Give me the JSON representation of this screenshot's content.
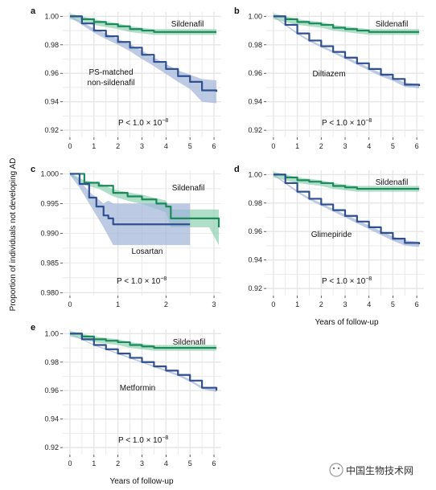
{
  "figure": {
    "ylabel": "Proportion of individuals not developing AD",
    "xlabel": "Years of follow-up",
    "watermark": "中国生物技术网"
  },
  "colors": {
    "sildenafil": "#1a8a5a",
    "sildenafil_band": "#8fd0b0",
    "comparator": "#2f4f8f",
    "comparator_band": "#9fb4d8",
    "grid": "#e6e6e6"
  },
  "chart_data": [
    {
      "type": "line",
      "panel": "a",
      "xlim": [
        -0.3,
        6.3
      ],
      "ylim": [
        0.915,
        1.003
      ],
      "xticks": [
        0,
        1,
        2,
        3,
        4,
        5,
        6
      ],
      "yticks": [
        0.92,
        0.94,
        0.96,
        0.98,
        1.0
      ],
      "ytick_labels": [
        "0.92",
        "0.94",
        "0.96",
        "0.98",
        "1.00"
      ],
      "grid": true,
      "annotation": "P < 1.0 × 10",
      "annotation_exp": "−8",
      "series": [
        {
          "name": "Sildenafil",
          "x": [
            0,
            0.5,
            1,
            1.5,
            2,
            2.5,
            3,
            3.5,
            4,
            4.5,
            5,
            5.5,
            6.1
          ],
          "y": [
            1.0,
            0.998,
            0.996,
            0.9945,
            0.993,
            0.991,
            0.99,
            0.989,
            0.989,
            0.989,
            0.989,
            0.989,
            0.989
          ],
          "band": [
            0.002,
            0.002,
            0.002,
            0.002,
            0.002,
            0.002,
            0.002,
            0.002,
            0.002,
            0.002,
            0.002,
            0.002,
            0.002
          ]
        },
        {
          "name": "PS-matched non-sildenafil",
          "x": [
            0,
            0.5,
            1,
            1.5,
            2,
            2.5,
            3,
            3.5,
            4,
            4.5,
            5,
            5.5,
            6.1
          ],
          "y": [
            1.0,
            0.995,
            0.99,
            0.986,
            0.982,
            0.978,
            0.973,
            0.968,
            0.963,
            0.958,
            0.954,
            0.948,
            0.947
          ],
          "band": [
            0.0005,
            0.001,
            0.0015,
            0.002,
            0.002,
            0.0025,
            0.003,
            0.003,
            0.0035,
            0.004,
            0.005,
            0.008,
            0.008
          ]
        }
      ]
    },
    {
      "type": "line",
      "panel": "b",
      "xlim": [
        -0.3,
        6.3
      ],
      "ylim": [
        0.915,
        1.003
      ],
      "xticks": [
        0,
        1,
        2,
        3,
        4,
        5,
        6
      ],
      "yticks": [
        0.92,
        0.94,
        0.96,
        0.98,
        1.0
      ],
      "ytick_labels": [
        "0.92",
        "0.94",
        "0.96",
        "0.98",
        "1.00"
      ],
      "grid": true,
      "annotation": "P < 1.0 × 10",
      "annotation_exp": "−8",
      "series": [
        {
          "name": "Sildenafil",
          "x": [
            0,
            0.5,
            1,
            1.5,
            2,
            2.5,
            3,
            3.5,
            4,
            4.5,
            5,
            5.5,
            6.1
          ],
          "y": [
            1.0,
            0.998,
            0.996,
            0.995,
            0.994,
            0.992,
            0.991,
            0.99,
            0.989,
            0.989,
            0.989,
            0.989,
            0.989
          ],
          "band": [
            0.002,
            0.002,
            0.002,
            0.002,
            0.002,
            0.002,
            0.002,
            0.002,
            0.002,
            0.002,
            0.002,
            0.002,
            0.002
          ]
        },
        {
          "name": "Diltiazem",
          "x": [
            0,
            0.5,
            1,
            1.5,
            2,
            2.5,
            3,
            3.5,
            4,
            4.5,
            5,
            5.5,
            6.1
          ],
          "y": [
            1.0,
            0.994,
            0.988,
            0.983,
            0.979,
            0.975,
            0.971,
            0.967,
            0.963,
            0.959,
            0.956,
            0.952,
            0.951
          ],
          "band": [
            0.0005,
            0.0005,
            0.0006,
            0.0007,
            0.0008,
            0.0008,
            0.0009,
            0.001,
            0.001,
            0.0012,
            0.0013,
            0.0015,
            0.0015
          ]
        }
      ]
    },
    {
      "type": "line",
      "panel": "c",
      "xlim": [
        -0.15,
        3.15
      ],
      "ylim": [
        0.9795,
        1.0006
      ],
      "xticks": [
        0,
        1,
        2,
        3
      ],
      "yticks": [
        0.98,
        0.985,
        0.99,
        0.995,
        1.0
      ],
      "ytick_labels": [
        "0.980",
        "0.985",
        "0.990",
        "0.995",
        "1.000"
      ],
      "grid": true,
      "annotation": "P < 1.0 × 10",
      "annotation_exp": "−8",
      "series": [
        {
          "name": "Sildenafil",
          "x": [
            0,
            0.3,
            0.6,
            0.9,
            1.2,
            1.5,
            1.8,
            2.0,
            2.1,
            2.5,
            2.9,
            3.1
          ],
          "y": [
            1.0,
            0.9985,
            0.998,
            0.9968,
            0.9962,
            0.9957,
            0.995,
            0.9945,
            0.9925,
            0.9925,
            0.9925,
            0.991
          ],
          "band": [
            0.0002,
            0.0004,
            0.0005,
            0.0006,
            0.0007,
            0.0008,
            0.0009,
            0.001,
            0.0015,
            0.0015,
            0.0015,
            0.003
          ]
        },
        {
          "name": "Losartan",
          "x": [
            0,
            0.2,
            0.4,
            0.55,
            0.7,
            0.8,
            0.9,
            1.2,
            1.6,
            2.0,
            2.5
          ],
          "y": [
            1.0,
            0.9983,
            0.996,
            0.9945,
            0.993,
            0.9925,
            0.9915,
            0.9915,
            0.9915,
            0.9915,
            0.9915
          ],
          "band": [
            0.0002,
            0.0006,
            0.001,
            0.0015,
            0.002,
            0.003,
            0.0035,
            0.0035,
            0.0035,
            0.0035,
            0.0035
          ]
        }
      ]
    },
    {
      "type": "line",
      "panel": "d",
      "xlim": [
        -0.3,
        6.3
      ],
      "ylim": [
        0.915,
        1.003
      ],
      "xticks": [
        0,
        1,
        2,
        3,
        4,
        5,
        6
      ],
      "yticks": [
        0.92,
        0.94,
        0.96,
        0.98,
        1.0
      ],
      "ytick_labels": [
        "0.92",
        "0.94",
        "0.96",
        "0.98",
        "1.00"
      ],
      "grid": true,
      "annotation": "P < 1.0 × 10",
      "annotation_exp": "−8",
      "series": [
        {
          "name": "Sildenafil",
          "x": [
            0,
            0.5,
            1,
            1.5,
            2,
            2.5,
            3,
            3.5,
            4,
            4.5,
            5,
            5.5,
            6.1
          ],
          "y": [
            1.0,
            0.998,
            0.996,
            0.995,
            0.994,
            0.992,
            0.991,
            0.99,
            0.99,
            0.99,
            0.99,
            0.99,
            0.99
          ],
          "band": [
            0.002,
            0.002,
            0.002,
            0.002,
            0.002,
            0.002,
            0.002,
            0.002,
            0.002,
            0.002,
            0.002,
            0.002,
            0.002
          ]
        },
        {
          "name": "Glimepiride",
          "x": [
            0,
            0.5,
            1,
            1.5,
            2,
            2.5,
            3,
            3.5,
            4,
            4.5,
            5,
            5.5,
            6.1
          ],
          "y": [
            1.0,
            0.994,
            0.988,
            0.983,
            0.979,
            0.975,
            0.971,
            0.967,
            0.963,
            0.959,
            0.955,
            0.952,
            0.951
          ],
          "band": [
            0.0005,
            0.0006,
            0.0007,
            0.0008,
            0.0009,
            0.001,
            0.0011,
            0.0012,
            0.0013,
            0.0014,
            0.0016,
            0.0018,
            0.0018
          ]
        }
      ]
    },
    {
      "type": "line",
      "panel": "e",
      "xlim": [
        -0.3,
        6.3
      ],
      "ylim": [
        0.915,
        1.003
      ],
      "xticks": [
        0,
        1,
        2,
        3,
        4,
        5,
        6
      ],
      "yticks": [
        0.92,
        0.94,
        0.96,
        0.98,
        1.0
      ],
      "ytick_labels": [
        "0.92",
        "0.94",
        "0.96",
        "0.98",
        "1.00"
      ],
      "grid": true,
      "annotation": "P < 1.0 × 10",
      "annotation_exp": "−8",
      "series": [
        {
          "name": "Sildenafil",
          "x": [
            0,
            0.5,
            1,
            1.5,
            2,
            2.5,
            3,
            3.5,
            4,
            4.5,
            5,
            5.5,
            6.1
          ],
          "y": [
            1.0,
            0.998,
            0.996,
            0.995,
            0.994,
            0.992,
            0.991,
            0.99,
            0.99,
            0.99,
            0.99,
            0.99,
            0.99
          ],
          "band": [
            0.002,
            0.002,
            0.002,
            0.002,
            0.002,
            0.002,
            0.002,
            0.002,
            0.002,
            0.002,
            0.002,
            0.002,
            0.002
          ]
        },
        {
          "name": "Metformin",
          "x": [
            0,
            0.5,
            1,
            1.5,
            2,
            2.5,
            3,
            3.5,
            4,
            4.5,
            5,
            5.5,
            6.1
          ],
          "y": [
            1.0,
            0.996,
            0.992,
            0.989,
            0.986,
            0.983,
            0.98,
            0.977,
            0.974,
            0.971,
            0.967,
            0.962,
            0.96
          ],
          "band": [
            0.0003,
            0.0003,
            0.0004,
            0.0004,
            0.0005,
            0.0005,
            0.0005,
            0.0006,
            0.0006,
            0.0007,
            0.0008,
            0.0009,
            0.001
          ]
        }
      ]
    }
  ]
}
